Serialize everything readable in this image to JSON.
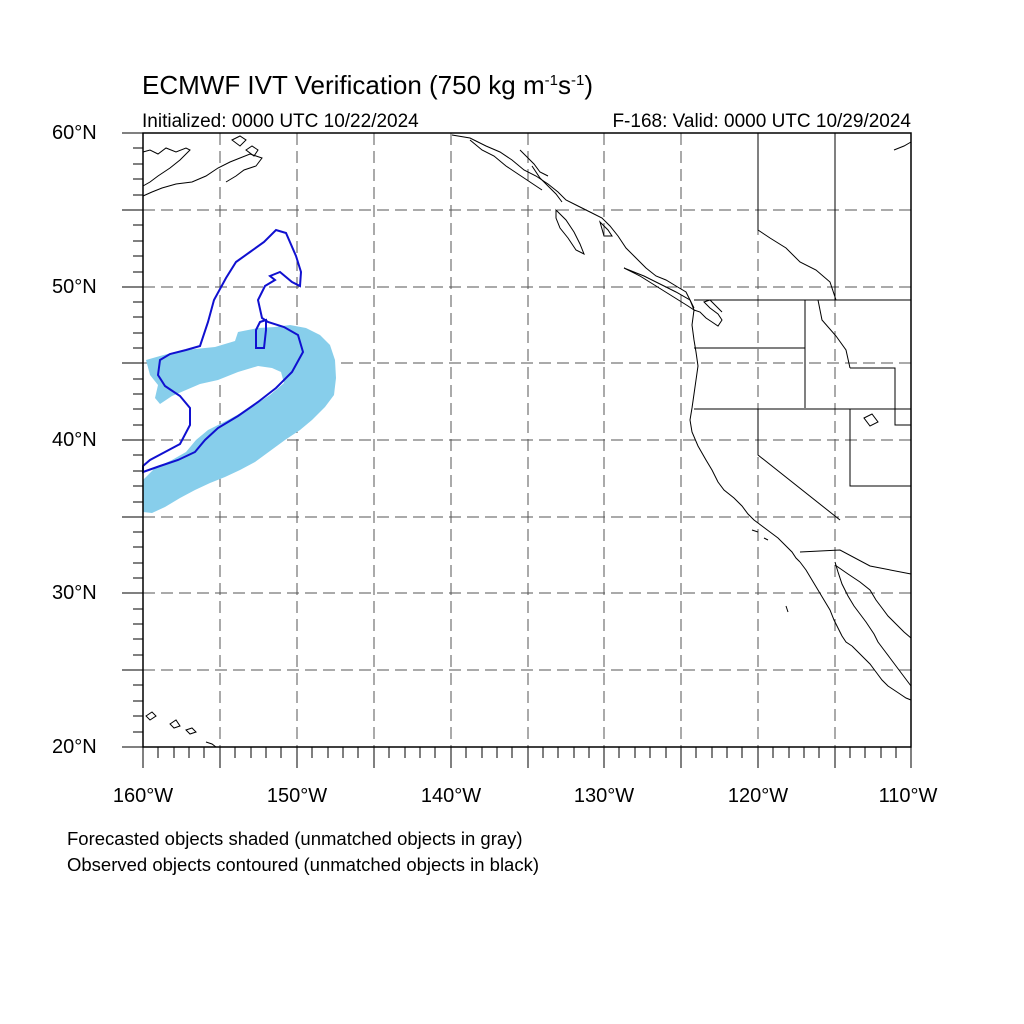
{
  "title": {
    "prefix": "ECMWF IVT Verification (750 kg m",
    "exp1": "-1",
    "mid": "s",
    "exp2": "-1",
    "suffix": ")"
  },
  "initialized": "Initialized: 0000 UTC 10/22/2024",
  "valid": "F-168: Valid: 0000 UTC 10/29/2024",
  "lat_labels": [
    "60°N",
    "50°N",
    "40°N",
    "30°N",
    "20°N"
  ],
  "lon_labels": [
    "160°W",
    "150°W",
    "140°W",
    "130°W",
    "120°W",
    "110°W"
  ],
  "footnotes": [
    "Forecasted objects shaded (unmatched objects in gray)",
    "Observed objects contoured (unmatched objects in black)"
  ],
  "map_extent": {
    "lon_min": -160,
    "lon_max": -110,
    "lat_min": 20,
    "lat_max": 60,
    "grid_interval_deg": 5
  },
  "colors": {
    "forecast_object_fill": "#87ceeb",
    "observed_object_contour": "#1010d0",
    "coastline": "#000000",
    "grid": "#555555"
  }
}
